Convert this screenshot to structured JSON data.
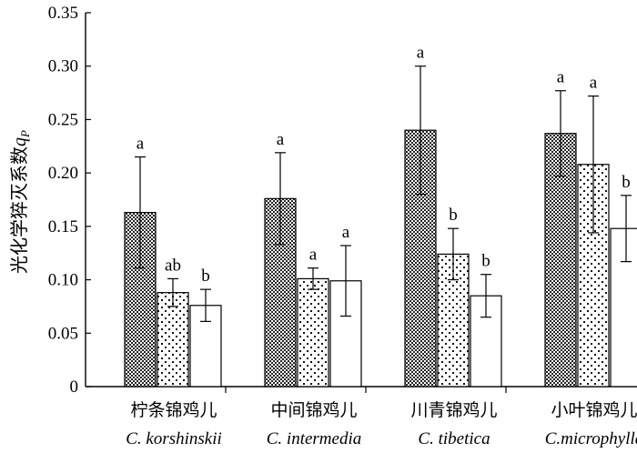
{
  "chart_data": {
    "type": "bar",
    "ylabel": {
      "text": "光化学猝灭系数",
      "var": "q",
      "sub": "P"
    },
    "ylim": [
      0,
      0.35
    ],
    "yticks": [
      "0",
      "0.05",
      "0.10",
      "0.15",
      "0.20",
      "0.25",
      "0.30",
      "0.35"
    ],
    "categories": [
      {
        "cn": "柠条锦鸡儿",
        "latin": "C. korshinskii"
      },
      {
        "cn": "中间锦鸡儿",
        "latin": "C. intermedia"
      },
      {
        "cn": "川青锦鸡儿",
        "latin": "C. tibetica"
      },
      {
        "cn": "小叶锦鸡儿",
        "latin": "C.microphylla"
      }
    ],
    "series": [
      {
        "pattern": "checker",
        "values": [
          0.163,
          0.176,
          0.24,
          0.237
        ],
        "errors": [
          0.052,
          0.043,
          0.06,
          0.04
        ],
        "labels": [
          "a",
          "a",
          "a",
          "a"
        ]
      },
      {
        "pattern": "dots",
        "values": [
          0.088,
          0.101,
          0.124,
          0.208
        ],
        "errors": [
          0.013,
          0.01,
          0.024,
          0.064
        ],
        "labels": [
          "ab",
          "a",
          "b",
          "a"
        ]
      },
      {
        "pattern": "white",
        "values": [
          0.076,
          0.099,
          0.085,
          0.148
        ],
        "errors": [
          0.015,
          0.033,
          0.02,
          0.031
        ],
        "labels": [
          "b",
          "a",
          "b",
          "b"
        ]
      }
    ],
    "grid": false,
    "legend": "none"
  }
}
